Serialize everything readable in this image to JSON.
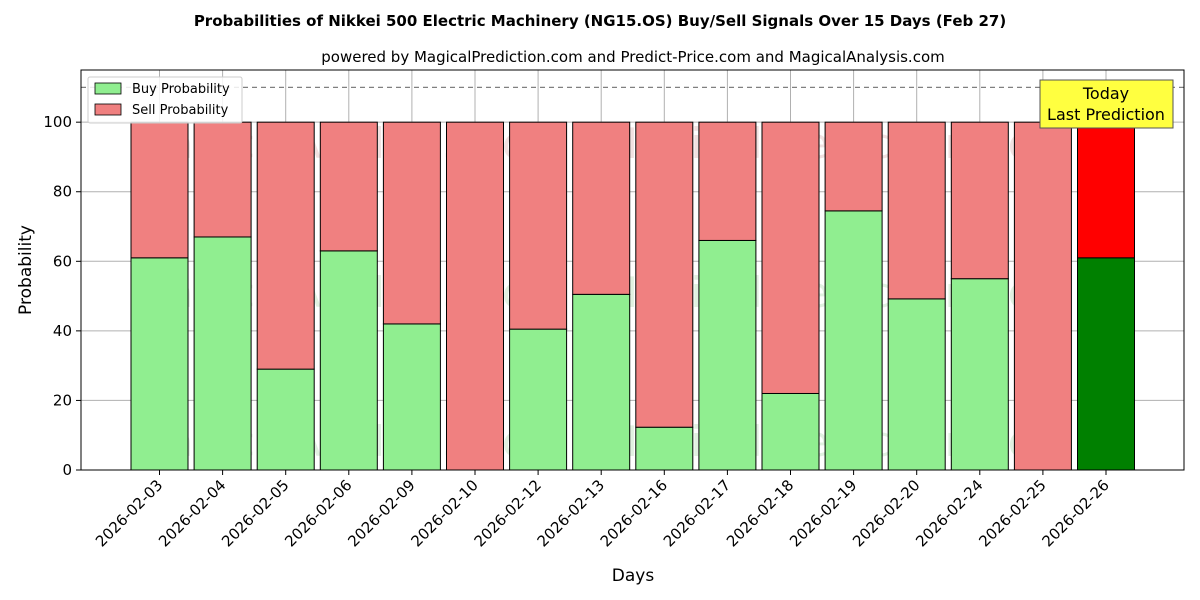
{
  "chart_data": {
    "type": "bar",
    "stacked": true,
    "title": "Probabilities of Nikkei 500 Electric Machinery (NG15.OS) Buy/Sell Signals Over 15 Days (Feb 27)",
    "subtitle": "powered by MagicalPrediction.com and Predict-Price.com and MagicalAnalysis.com",
    "xlabel": "Days",
    "ylabel": "Probability",
    "ylim": [
      0,
      115
    ],
    "yticks": [
      0,
      20,
      40,
      60,
      80,
      100
    ],
    "reference_line": 110,
    "grid": true,
    "legend_position": "top-left",
    "categories": [
      "2026-02-03",
      "2026-02-04",
      "2026-02-05",
      "2026-02-06",
      "2026-02-09",
      "2026-02-10",
      "2026-02-12",
      "2026-02-13",
      "2026-02-16",
      "2026-02-17",
      "2026-02-18",
      "2026-02-19",
      "2026-02-20",
      "2026-02-24",
      "2026-02-25",
      "2026-02-26"
    ],
    "series": [
      {
        "name": "Buy Probability",
        "color": "#90ee90",
        "highlight_color": "#008000",
        "values": [
          61,
          67,
          29,
          63,
          42,
          0,
          40.5,
          50.5,
          12.3,
          66,
          22,
          74.5,
          49.2,
          55,
          0,
          61
        ]
      },
      {
        "name": "Sell Probability",
        "color": "#f08080",
        "highlight_color": "#ff0000",
        "values": [
          39,
          33,
          71,
          37,
          58,
          100,
          59.5,
          49.5,
          87.7,
          34,
          78,
          25.5,
          50.8,
          45,
          100,
          39
        ]
      }
    ],
    "highlight_index": 15,
    "annotation": {
      "line1": "Today",
      "line2": "Last Prediction",
      "color": "#ffff40"
    },
    "watermarks": [
      "MagicalAnalysis.com",
      "MagicalPrediction.com"
    ]
  }
}
